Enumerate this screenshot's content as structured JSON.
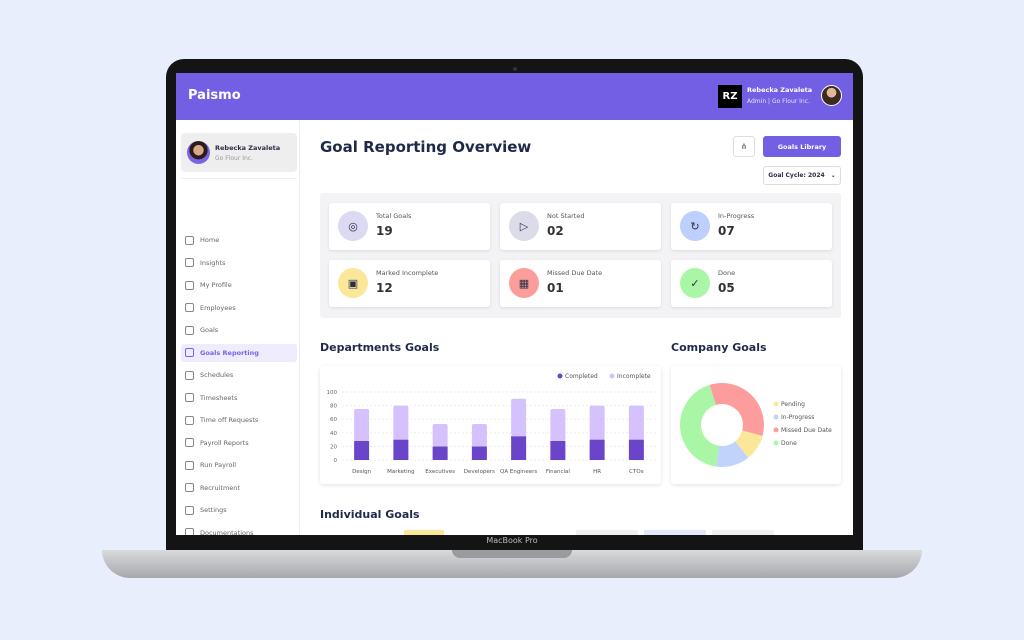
{
  "device_label": "MacBook Pro",
  "app": {
    "name": "Paismo"
  },
  "header": {
    "initials": "RZ",
    "user_name": "Rebecka Zavaleta",
    "user_role": "Admin | Go Flour Inc."
  },
  "sidebar": {
    "profile": {
      "name": "Rebecka Zavaleta",
      "company": "Go Flour Inc."
    },
    "items": [
      {
        "label": "Home",
        "icon": "home-icon"
      },
      {
        "label": "Insights",
        "icon": "insights-icon"
      },
      {
        "label": "My Profile",
        "icon": "user-icon"
      },
      {
        "label": "Employees",
        "icon": "users-icon"
      },
      {
        "label": "Goals",
        "icon": "target-icon"
      },
      {
        "label": "Goals Reporting",
        "icon": "presentation-icon",
        "active": true
      },
      {
        "label": "Schedules",
        "icon": "calendar-icon"
      },
      {
        "label": "Timesheets",
        "icon": "stopwatch-icon"
      },
      {
        "label": "Time off Requests",
        "icon": "calendar-off-icon"
      },
      {
        "label": "Payroll Reports",
        "icon": "report-icon"
      },
      {
        "label": "Run Payroll",
        "icon": "dollar-icon"
      },
      {
        "label": "Recruitment",
        "icon": "briefcase-icon"
      },
      {
        "label": "Settings",
        "icon": "gear-icon"
      },
      {
        "label": "Documentations",
        "icon": "folder-icon"
      }
    ],
    "collapse_label": "«"
  },
  "main": {
    "title": "Goal Reporting Overview",
    "goals_library_label": "Goals Library",
    "goal_cycle_label": "Goal Cycle: 2024",
    "stats": [
      {
        "label": "Total Goals",
        "value": "19",
        "color": "#dcd9f3",
        "icon": "target-icon",
        "glyph": "◎"
      },
      {
        "label": "Not Started",
        "value": "02",
        "color": "#dcdbe9",
        "icon": "play-icon",
        "glyph": "▷"
      },
      {
        "label": "In-Progress",
        "value": "07",
        "color": "#bcd0fb",
        "icon": "refresh-icon",
        "glyph": "↻"
      },
      {
        "label": "Marked Incomplete",
        "value": "12",
        "color": "#fbe79a",
        "icon": "file-x-icon",
        "glyph": "▣"
      },
      {
        "label": "Missed Due Date",
        "value": "01",
        "color": "#fb9d9a",
        "icon": "calendar-x-icon",
        "glyph": "▦"
      },
      {
        "label": "Done",
        "value": "05",
        "color": "#a9f7a6",
        "icon": "check-circle-icon",
        "glyph": "✓"
      }
    ],
    "departments_title": "Departments Goals",
    "company_title": "Company Goals",
    "individual_title": "Individual Goals"
  },
  "chart_data": [
    {
      "type": "bar",
      "stacked": true,
      "categories": [
        "Design",
        "Marketing",
        "Executives",
        "Developers",
        "QA Engineers",
        "Financial",
        "HR",
        "CTOs"
      ],
      "series": [
        {
          "name": "Completed",
          "color": "#6a45c9",
          "values": [
            28,
            30,
            20,
            20,
            35,
            28,
            30,
            30
          ]
        },
        {
          "name": "Incomplete",
          "color": "#d5c1fb",
          "values": [
            47,
            50,
            33,
            33,
            55,
            47,
            50,
            50
          ]
        }
      ],
      "ylim": [
        0,
        100
      ],
      "yticks": [
        0,
        20,
        40,
        60,
        80,
        100
      ],
      "grid": true,
      "legend": "top-right"
    },
    {
      "type": "pie",
      "donut": true,
      "labels": [
        "Pending",
        "In-Progress",
        "Missed Due Date",
        "Done"
      ],
      "values": [
        10,
        13,
        34,
        43
      ],
      "colors": [
        "#fbe79a",
        "#c1d3fb",
        "#fd9c9c",
        "#a9f7a6"
      ],
      "legend": "right"
    }
  ]
}
